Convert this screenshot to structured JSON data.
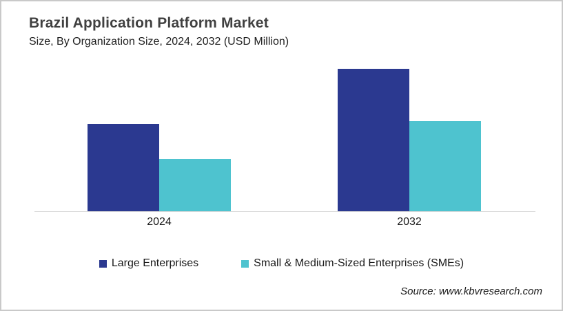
{
  "chart": {
    "title": "Brazil Application Platform Market",
    "subtitle": "Size, By Organization Size, 2024, 2032 (USD Million)",
    "source": "Source: www.kbvresearch.com"
  },
  "chart_data": {
    "type": "bar",
    "title": "Brazil Application Platform Market",
    "subtitle": "Size, By Organization Size, 2024, 2032 (USD Million)",
    "categories": [
      "2024",
      "2032"
    ],
    "series": [
      {
        "name": "Large Enterprises",
        "color": "#2B3990",
        "values": [
          127,
          207
        ]
      },
      {
        "name": "Small & Medium-Sized Enterprises (SMEs)",
        "color": "#4EC3CF",
        "values": [
          76,
          131
        ]
      }
    ],
    "xlabel": "",
    "ylabel": "",
    "ylim": [
      0,
      230
    ],
    "grid": false,
    "y_axis_visible": false,
    "legend_position": "bottom",
    "note_units": "USD Million (axis unlabeled; values are relative estimates)"
  }
}
